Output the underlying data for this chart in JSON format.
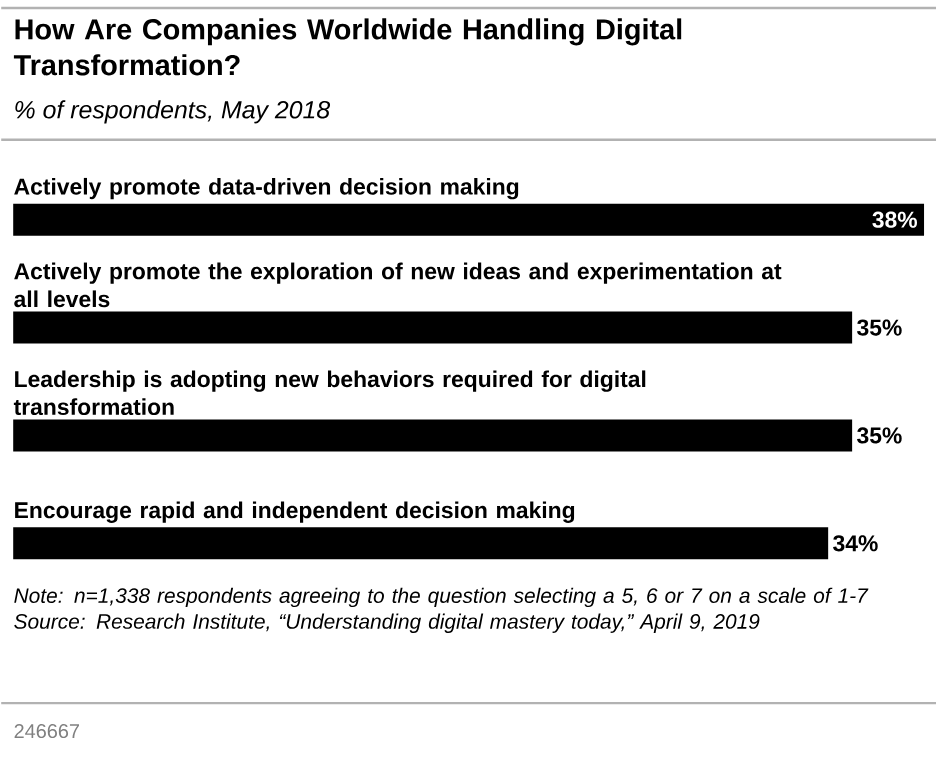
{
  "chart_data": {
    "type": "bar",
    "orientation": "horizontal",
    "title": "How Are Companies Worldwide Handling Digital Transformation?",
    "subtitle": "% of respondents, May 2018",
    "categories": [
      "Actively promote data-driven decision making",
      "Actively promote the exploration of new ideas and experimentation at all levels",
      "Leadership is adopting new behaviors required for digital transformation",
      "Encourage rapid and independent decision making"
    ],
    "values": [
      38,
      35,
      35,
      34
    ],
    "value_labels": [
      "38%",
      "35%",
      "35%",
      "34%"
    ],
    "color": "#000000",
    "tick_labels": false,
    "annotations": [
      "Note: n=1,338 respondents agreeing to the question selecting a 5, 6 or 7 on a scale of 1-7",
      "Source: Research Institute, “Understanding digital mastery today,” April 9, 2019",
      "246667"
    ]
  }
}
